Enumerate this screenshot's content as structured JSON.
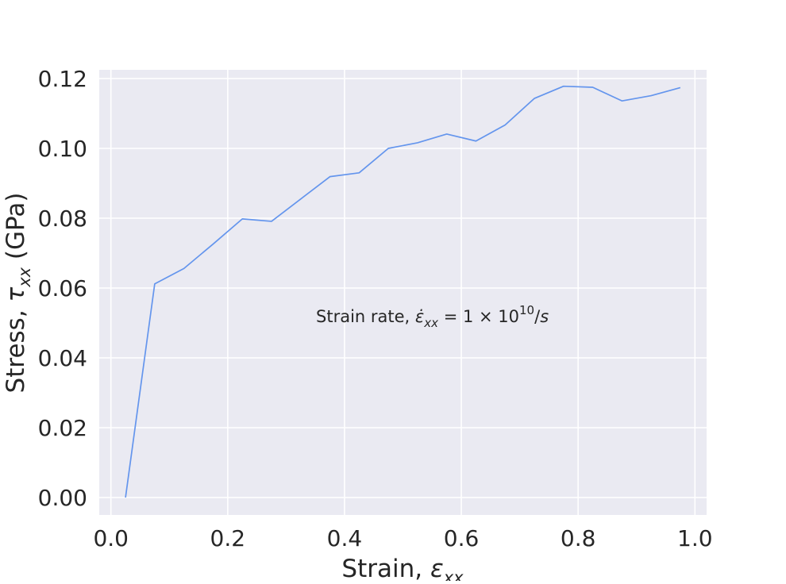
{
  "chart_data": {
    "type": "line",
    "title": "",
    "xlabel": {
      "prefix": "Strain, ",
      "symbol": "ε",
      "subscript": "xx"
    },
    "ylabel": {
      "prefix": "Stress, ",
      "symbol": "τ",
      "subscript": "xx",
      "unit": " (GPa)"
    },
    "xlim": [
      -0.02,
      1.02
    ],
    "ylim": [
      -0.005,
      0.1225
    ],
    "xticks": [
      0.0,
      0.2,
      0.4,
      0.6,
      0.8,
      1.0
    ],
    "xtick_labels": [
      "0.0",
      "0.2",
      "0.4",
      "0.6",
      "0.8",
      "1.0"
    ],
    "yticks": [
      0.0,
      0.02,
      0.04,
      0.06,
      0.08,
      0.1,
      0.12
    ],
    "ytick_labels": [
      "0.00",
      "0.02",
      "0.04",
      "0.06",
      "0.08",
      "0.10",
      "0.12"
    ],
    "grid": true,
    "series": [
      {
        "color": "#6495ed",
        "x": [
          0.025,
          0.075,
          0.125,
          0.175,
          0.225,
          0.275,
          0.325,
          0.375,
          0.425,
          0.475,
          0.525,
          0.575,
          0.625,
          0.675,
          0.725,
          0.775,
          0.825,
          0.875,
          0.925,
          0.975
        ],
        "y": [
          0.0,
          0.0612,
          0.0656,
          0.0726,
          0.0798,
          0.0791,
          0.0855,
          0.0919,
          0.093,
          0.1,
          0.1016,
          0.1041,
          0.1021,
          0.1067,
          0.1143,
          0.1178,
          0.1175,
          0.1136,
          0.1151,
          0.1174
        ]
      }
    ],
    "annotation": {
      "prefix": "Strain rate, ",
      "symbol": "ε̇",
      "subscript": "xx",
      "equals": " = 1 × 10",
      "exponent": "10",
      "unit": "/",
      "unit_symbol": "s"
    }
  },
  "colors": {
    "plot_background": "#eaeaf2",
    "grid": "#ffffff",
    "line": "#6495ed",
    "text": "#262626"
  }
}
